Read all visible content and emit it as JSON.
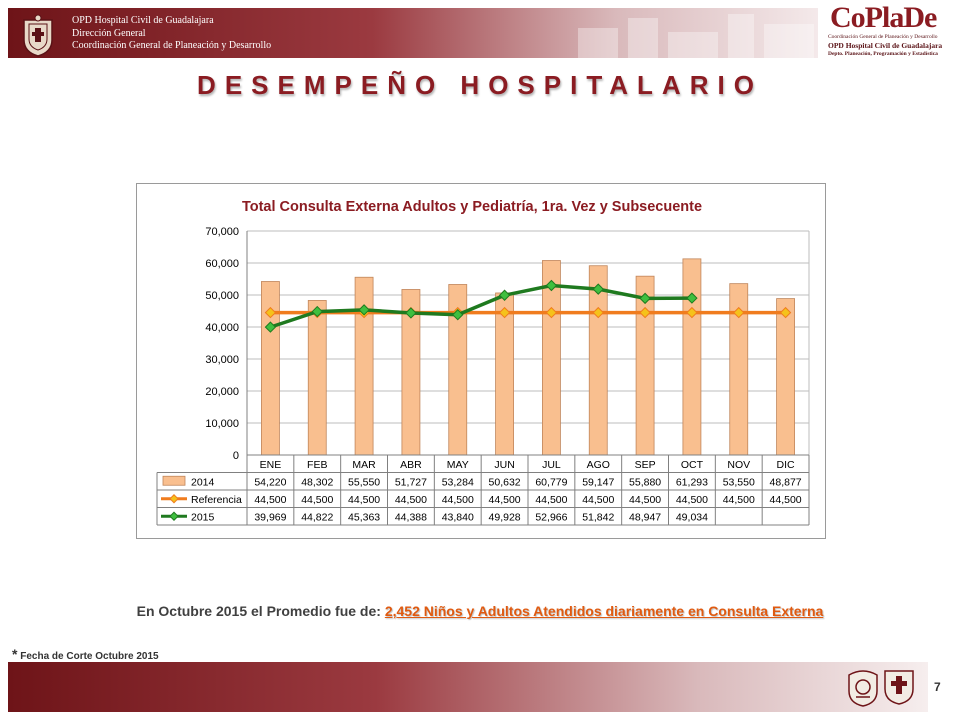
{
  "header": {
    "line1": "OPD Hospital Civil de Guadalajara",
    "line2": "Dirección General",
    "line3": "Coordinación General de Planeación y Desarrollo",
    "coplade_logo": "CoPlaDe",
    "coplade_line1": "Coordinación General de Planeación y Desarrollo",
    "coplade_line2": "OPD Hospital Civil de Guadalajara",
    "coplade_line3": "Depto. Planeación, Programación y Estadística"
  },
  "page_title": "DESEMPEÑO HOSPITALARIO",
  "summary": {
    "prefix": "En Octubre 2015 el Promedio fue de: ",
    "highlight": "2,452  Niños y Adultos Atendidos diariamente en Consulta Externa"
  },
  "footnote": {
    "star": "*",
    "text": " Fecha de Corte Octubre 2015"
  },
  "page_number": "7",
  "colors": {
    "bar_2014": "#f9bf8f",
    "bar_2014_border": "#c0855a",
    "referencia": "#f07c1e",
    "referencia_marker": "#f5c21b",
    "line_2015": "#1f7a1f",
    "line_2015_marker": "#3fbf3f",
    "title_red": "#8b1c22"
  },
  "chart_data": {
    "type": "bar",
    "title": "Total Consulta Externa Adultos y Pediatría, 1ra. Vez y Subsecuente",
    "categories": [
      "ENE",
      "FEB",
      "MAR",
      "ABR",
      "MAY",
      "JUN",
      "JUL",
      "AGO",
      "SEP",
      "OCT",
      "NOV",
      "DIC"
    ],
    "ylim": [
      0,
      70000
    ],
    "yticks": [
      "0",
      "10,000",
      "20,000",
      "30,000",
      "40,000",
      "50,000",
      "60,000",
      "70,000"
    ],
    "grid": true,
    "series": [
      {
        "name": "2014",
        "kind": "bar",
        "values": [
          54220,
          48302,
          55550,
          51727,
          53284,
          50632,
          60779,
          59147,
          55880,
          61293,
          53550,
          48877
        ],
        "labels": [
          "54,220",
          "48,302",
          "55,550",
          "51,727",
          "53,284",
          "50,632",
          "60,779",
          "59,147",
          "55,880",
          "61,293",
          "53,550",
          "48,877"
        ]
      },
      {
        "name": "Referencia",
        "kind": "line",
        "values": [
          44500,
          44500,
          44500,
          44500,
          44500,
          44500,
          44500,
          44500,
          44500,
          44500,
          44500,
          44500
        ],
        "labels": [
          "44,500",
          "44,500",
          "44,500",
          "44,500",
          "44,500",
          "44,500",
          "44,500",
          "44,500",
          "44,500",
          "44,500",
          "44,500",
          "44,500"
        ]
      },
      {
        "name": "2015",
        "kind": "line",
        "values": [
          39969,
          44822,
          45363,
          44388,
          43840,
          49928,
          52966,
          51842,
          48947,
          49034,
          null,
          null
        ],
        "labels": [
          "39,969",
          "44,822",
          "45,363",
          "44,388",
          "43,840",
          "49,928",
          "52,966",
          "51,842",
          "48,947",
          "49,034",
          "",
          ""
        ]
      }
    ]
  }
}
